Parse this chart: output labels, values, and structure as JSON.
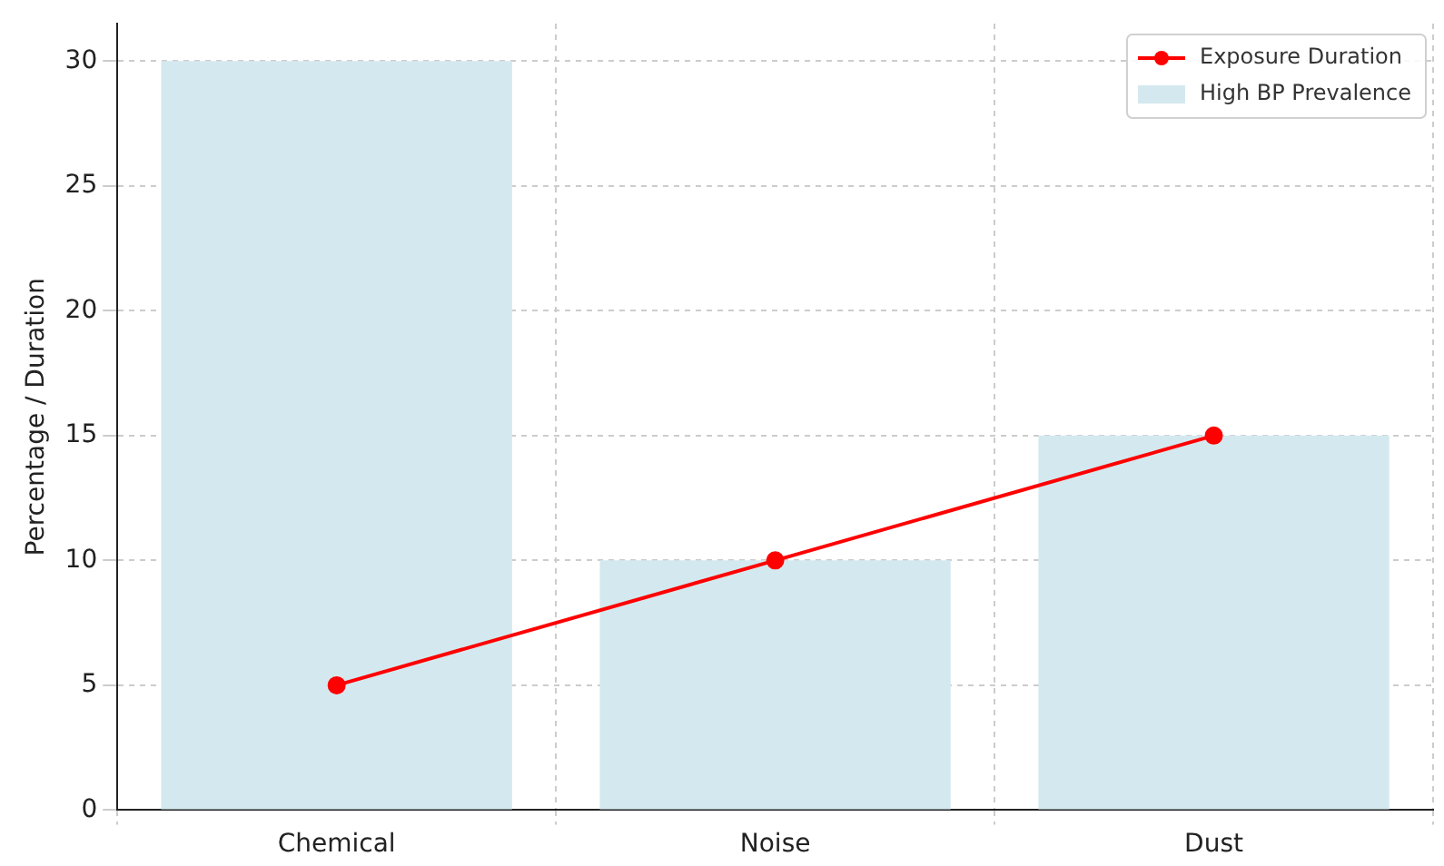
{
  "chart_data": {
    "type": "bar",
    "ylabel": "Percentage / Duration",
    "categories": [
      "Chemical",
      "Noise",
      "Dust"
    ],
    "series": [
      {
        "name": "Exposure Duration",
        "type": "line",
        "color": "#ff0000",
        "values": [
          5,
          10,
          15
        ]
      },
      {
        "name": "High BP Prevalence",
        "color": "#d4e9ef",
        "values": [
          30,
          10,
          15
        ]
      }
    ],
    "ylim": [
      0,
      31.5
    ],
    "yticks": [
      0,
      5,
      10,
      15,
      20,
      25,
      30
    ],
    "grid": true,
    "legend": "top right",
    "marker": "circle",
    "line_style": "solid"
  }
}
